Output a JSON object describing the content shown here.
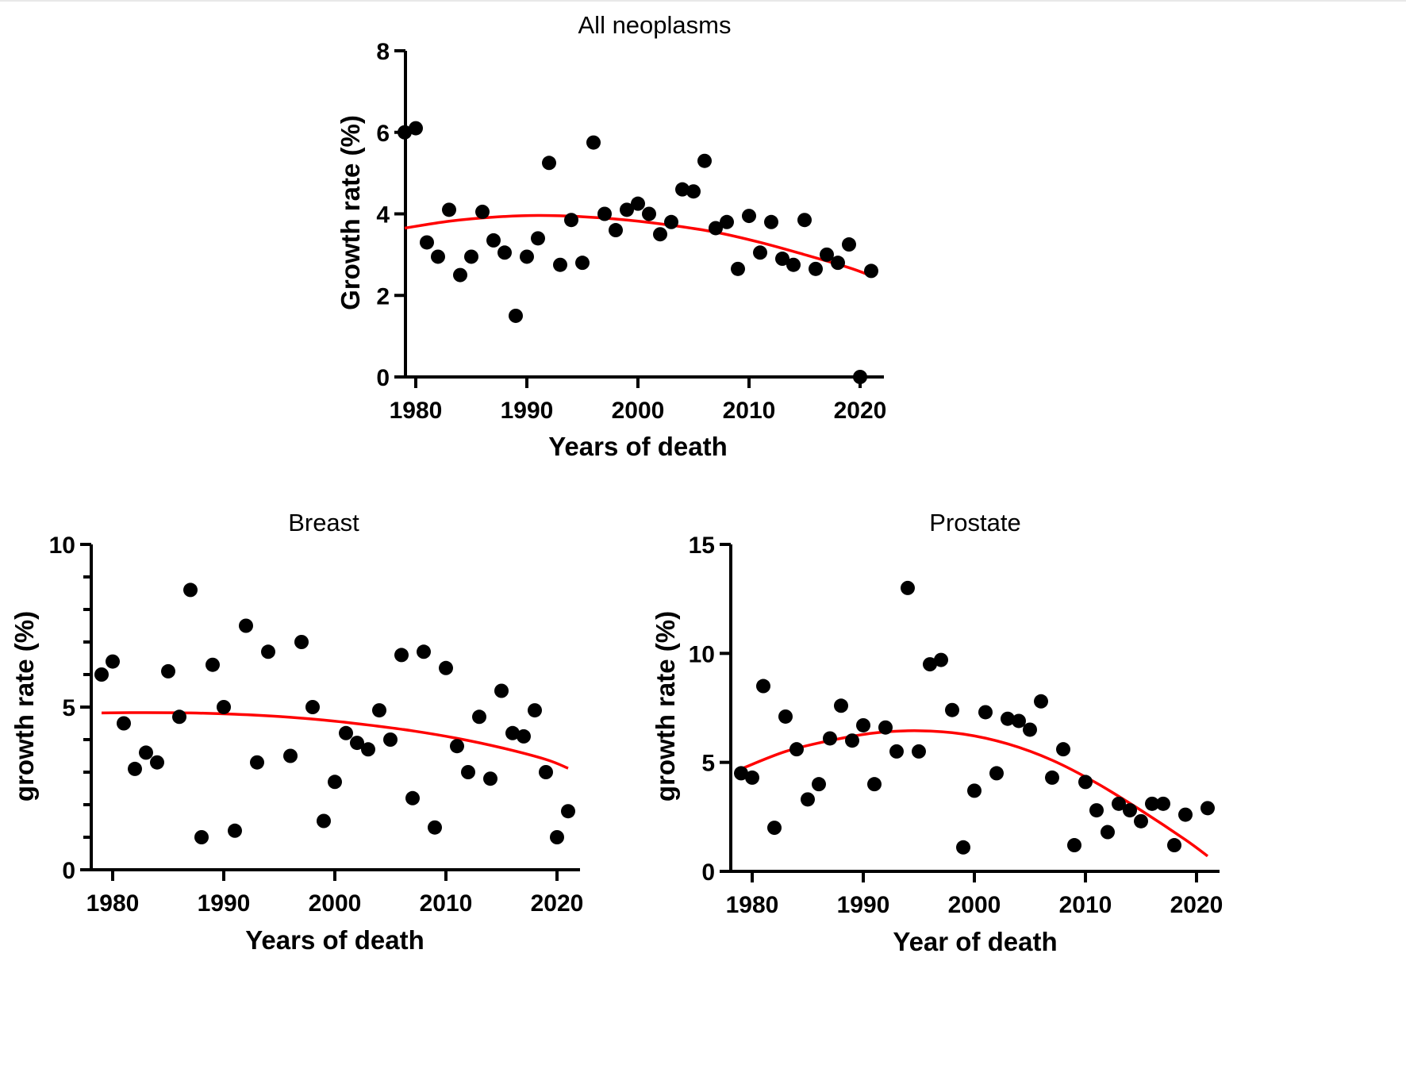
{
  "chart_data": [
    {
      "id": "all-neoplasms",
      "type": "scatter",
      "title": "All neoplasms",
      "xlabel": "Years of death",
      "ylabel": "Growth rate (%)",
      "xlim": [
        1979,
        2021
      ],
      "ylim": [
        0,
        8
      ],
      "xticks": [
        1980,
        1990,
        2000,
        2010,
        2020
      ],
      "yticks": [
        0,
        2,
        4,
        6,
        8
      ],
      "yminor": [],
      "grid": false,
      "legend": "none",
      "marker_color": "#000000",
      "fit_color": "#ff0000",
      "x": [
        1979,
        1980,
        1981,
        1982,
        1983,
        1984,
        1985,
        1986,
        1987,
        1988,
        1989,
        1990,
        1991,
        1992,
        1993,
        1994,
        1995,
        1996,
        1997,
        1998,
        1999,
        2000,
        2001,
        2002,
        2003,
        2004,
        2005,
        2006,
        2007,
        2008,
        2009,
        2010,
        2011,
        2012,
        2013,
        2014,
        2015,
        2016,
        2017,
        2018,
        2019,
        2020,
        2021
      ],
      "y": [
        6.0,
        6.1,
        3.3,
        2.95,
        4.1,
        2.5,
        2.95,
        4.05,
        3.35,
        3.05,
        1.5,
        2.95,
        3.4,
        5.25,
        2.75,
        3.85,
        2.8,
        5.75,
        4.0,
        3.6,
        4.1,
        4.25,
        4.0,
        3.5,
        3.8,
        4.6,
        4.55,
        5.3,
        3.65,
        3.8,
        2.65,
        3.95,
        3.05,
        3.8,
        2.9,
        2.75,
        3.85,
        2.65,
        3.0,
        2.8,
        3.25,
        0.0,
        2.6
      ],
      "fit": {
        "type": "quadratic",
        "x": [
          1979,
          1983,
          1987,
          1991,
          1995,
          1999,
          2003,
          2007,
          2011,
          2015,
          2019,
          2021
        ],
        "y": [
          3.65,
          3.82,
          3.92,
          3.96,
          3.93,
          3.85,
          3.72,
          3.55,
          3.3,
          3.0,
          2.68,
          2.48
        ]
      }
    },
    {
      "id": "breast",
      "type": "scatter",
      "title": "Breast",
      "xlabel": "Years of death",
      "ylabel": "growth rate (%)",
      "xlim": [
        1979,
        2021
      ],
      "ylim": [
        0,
        10
      ],
      "xticks": [
        1980,
        1990,
        2000,
        2010,
        2020
      ],
      "yticks": [
        0,
        5,
        10
      ],
      "yminor": [
        1,
        2,
        3,
        4,
        6,
        7,
        8,
        9
      ],
      "grid": false,
      "legend": "none",
      "marker_color": "#000000",
      "fit_color": "#ff0000",
      "x": [
        1979,
        1980,
        1981,
        1982,
        1983,
        1984,
        1985,
        1986,
        1987,
        1988,
        1989,
        1990,
        1991,
        1992,
        1993,
        1994,
        1996,
        1997,
        1998,
        1999,
        2000,
        2001,
        2002,
        2003,
        2004,
        2005,
        2006,
        2007,
        2008,
        2009,
        2010,
        2011,
        2012,
        2013,
        2014,
        2015,
        2016,
        2017,
        2018,
        2019,
        2020,
        2021
      ],
      "y": [
        6.0,
        6.4,
        4.5,
        3.1,
        3.6,
        3.3,
        6.1,
        4.7,
        8.6,
        1.0,
        6.3,
        5.0,
        1.2,
        7.5,
        3.3,
        6.7,
        3.5,
        7.0,
        5.0,
        1.5,
        2.7,
        4.2,
        3.9,
        3.7,
        4.9,
        4.0,
        6.6,
        2.2,
        6.7,
        1.3,
        6.2,
        3.8,
        3.0,
        4.7,
        2.8,
        5.5,
        4.2,
        4.1,
        4.9,
        3.0,
        1.0,
        1.8
      ],
      "fit": {
        "type": "quadratic",
        "x": [
          1979,
          1983,
          1987,
          1991,
          1995,
          1999,
          2003,
          2007,
          2011,
          2015,
          2019,
          2021
        ],
        "y": [
          4.82,
          4.83,
          4.82,
          4.78,
          4.71,
          4.6,
          4.45,
          4.27,
          4.04,
          3.75,
          3.39,
          3.12
        ]
      }
    },
    {
      "id": "prostate",
      "type": "scatter",
      "title": "Prostate",
      "xlabel": "Year of death",
      "ylabel": "growth rate (%)",
      "xlim": [
        1979,
        2021
      ],
      "ylim": [
        0,
        15
      ],
      "xticks": [
        1980,
        1990,
        2000,
        2010,
        2020
      ],
      "yticks": [
        0,
        5,
        10,
        15
      ],
      "yminor": [],
      "grid": false,
      "legend": "none",
      "marker_color": "#000000",
      "fit_color": "#ff0000",
      "x": [
        1979,
        1980,
        1981,
        1982,
        1983,
        1984,
        1985,
        1986,
        1987,
        1988,
        1989,
        1990,
        1991,
        1992,
        1993,
        1994,
        1995,
        1996,
        1997,
        1998,
        1999,
        2000,
        2001,
        2002,
        2003,
        2004,
        2005,
        2006,
        2007,
        2008,
        2009,
        2010,
        2011,
        2012,
        2013,
        2014,
        2015,
        2016,
        2017,
        2018,
        2019,
        2021
      ],
      "y": [
        4.5,
        4.3,
        8.5,
        2.0,
        7.1,
        5.6,
        3.3,
        4.0,
        6.1,
        7.6,
        6.0,
        6.7,
        4.0,
        6.6,
        5.5,
        13.0,
        5.5,
        9.5,
        9.7,
        7.4,
        1.1,
        3.7,
        7.3,
        4.5,
        7.0,
        6.9,
        6.5,
        7.8,
        4.3,
        5.6,
        1.2,
        4.1,
        2.8,
        1.8,
        3.1,
        2.8,
        2.3,
        3.1,
        3.1,
        1.2,
        2.6,
        2.9
      ],
      "fit": {
        "type": "quadratic",
        "x": [
          1979,
          1983,
          1987,
          1991,
          1995,
          1999,
          2003,
          2007,
          2011,
          2015,
          2019,
          2021
        ],
        "y": [
          4.7,
          5.5,
          6.0,
          6.35,
          6.45,
          6.3,
          5.85,
          5.1,
          4.05,
          2.8,
          1.45,
          0.7
        ]
      }
    }
  ]
}
